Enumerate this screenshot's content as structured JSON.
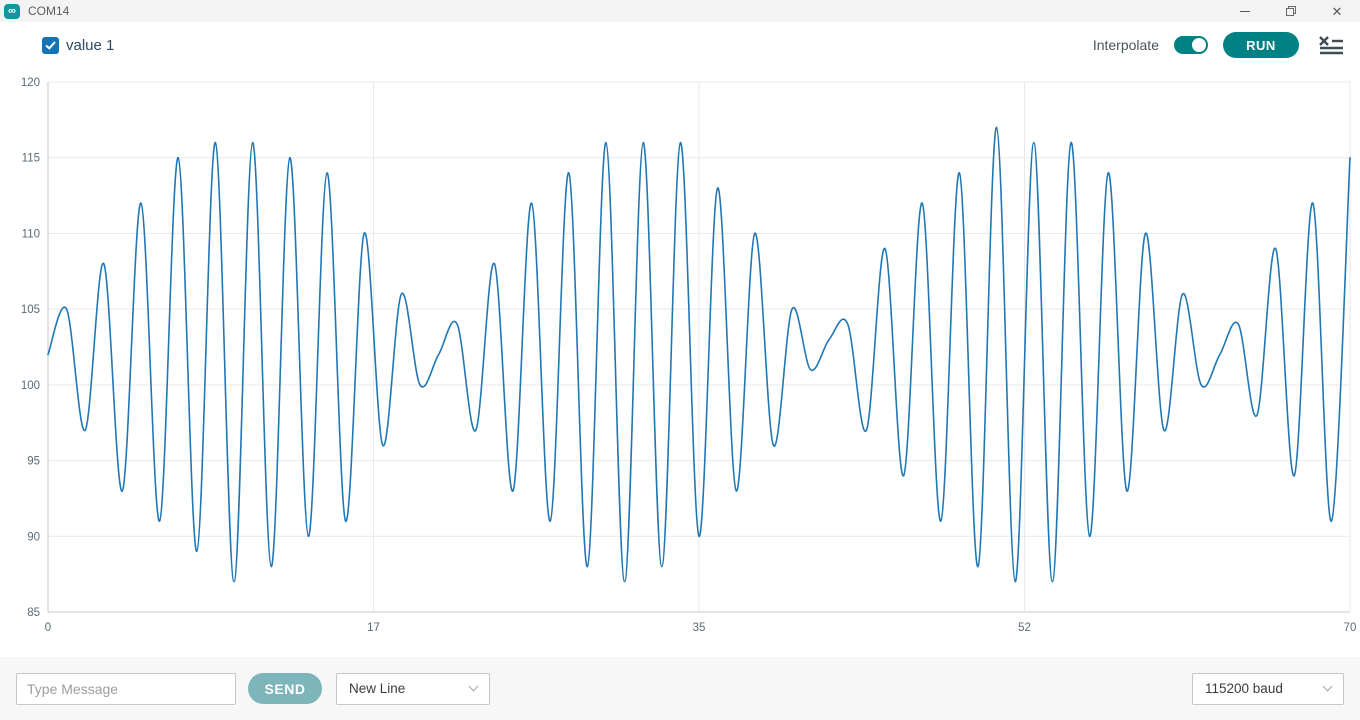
{
  "window": {
    "title": "COM14",
    "app_icon_glyph": "∞"
  },
  "toolbar": {
    "series_label": "value 1",
    "series_checked": true,
    "interpolate_label": "Interpolate",
    "interpolate_on": true,
    "run_label": "RUN"
  },
  "chart_data": {
    "type": "line",
    "title": "",
    "xlabel": "",
    "ylabel": "",
    "x_range": [
      0,
      70
    ],
    "y_range": [
      85,
      120
    ],
    "y_ticks": [
      120,
      115,
      110,
      105,
      100,
      95,
      90,
      85
    ],
    "x_ticks": [
      {
        "label": "0",
        "value": 0
      },
      {
        "label": "17",
        "value": 17.5
      },
      {
        "label": "35",
        "value": 35
      },
      {
        "label": "52",
        "value": 52.5
      },
      {
        "label": "70",
        "value": 70
      }
    ],
    "grid": true,
    "interpolated": true,
    "legend_position": "top-left-toolbar",
    "series": [
      {
        "name": "value 1",
        "color": "#1f77b4",
        "x_step": 1,
        "values": [
          102,
          105,
          97,
          108,
          93,
          112,
          91,
          115,
          89,
          116,
          87,
          116,
          88,
          115,
          90,
          114,
          91,
          110,
          96,
          106,
          100,
          102,
          104,
          97,
          108,
          93,
          112,
          91,
          114,
          88,
          116,
          87,
          116,
          88,
          116,
          90,
          113,
          93,
          110,
          96,
          105,
          101,
          103,
          104,
          97,
          109,
          94,
          112,
          91,
          114,
          88,
          117,
          87,
          116,
          87,
          116,
          90,
          114,
          93,
          110,
          97,
          106,
          100,
          102,
          104,
          98,
          109,
          94,
          112,
          91,
          115
        ]
      }
    ]
  },
  "bottom_bar": {
    "message_placeholder": "Type Message",
    "send_label": "SEND",
    "line_ending_value": "New Line",
    "baud_value": "115200 baud"
  },
  "colors": {
    "accent_teal": "#008184",
    "send_teal": "#7cb6ba",
    "line_blue": "#1f77b4",
    "checkbox_blue": "#1274b7",
    "grid": "#e9e9e9",
    "axis": "#c9c9c9",
    "tick_text": "#5a6b75"
  }
}
